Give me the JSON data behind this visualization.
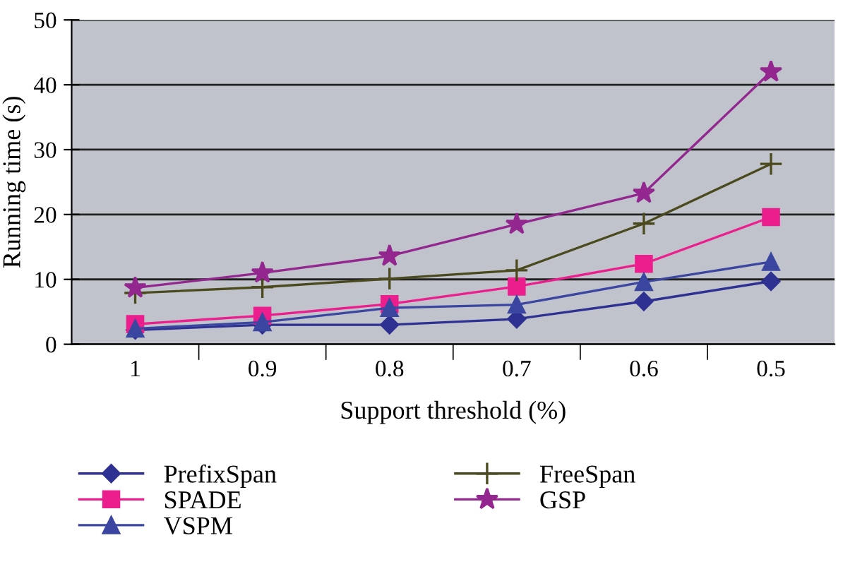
{
  "chart_data": {
    "type": "line",
    "xlabel": "Support threshold (%)",
    "ylabel": "Running time (s)",
    "categories": [
      "1",
      "0.9",
      "0.8",
      "0.7",
      "0.6",
      "0.5"
    ],
    "ylim": [
      0,
      50
    ],
    "yticks": [
      0,
      10,
      20,
      30,
      40,
      50
    ],
    "grid": "y",
    "legend": "bottom",
    "series": [
      {
        "name": "PrefixSpan",
        "color": "#2e3192",
        "marker": "diamond",
        "values": [
          2.2,
          3.0,
          3.0,
          3.9,
          6.6,
          9.7
        ]
      },
      {
        "name": "SPADE",
        "color": "#ec1e8e",
        "marker": "square",
        "values": [
          3.1,
          4.4,
          6.2,
          8.9,
          12.4,
          19.6
        ]
      },
      {
        "name": "VSPM",
        "color": "#3a46a0",
        "marker": "triangle",
        "values": [
          2.4,
          3.4,
          5.6,
          6.1,
          9.6,
          12.7
        ]
      },
      {
        "name": "FreeSpan",
        "color": "#4a4a1e",
        "marker": "cross",
        "values": [
          7.9,
          8.8,
          10.1,
          11.4,
          18.6,
          27.8
        ]
      },
      {
        "name": "GSP",
        "color": "#93278f",
        "marker": "star",
        "values": [
          8.7,
          11.0,
          13.6,
          18.5,
          23.3,
          42.0
        ]
      }
    ]
  }
}
